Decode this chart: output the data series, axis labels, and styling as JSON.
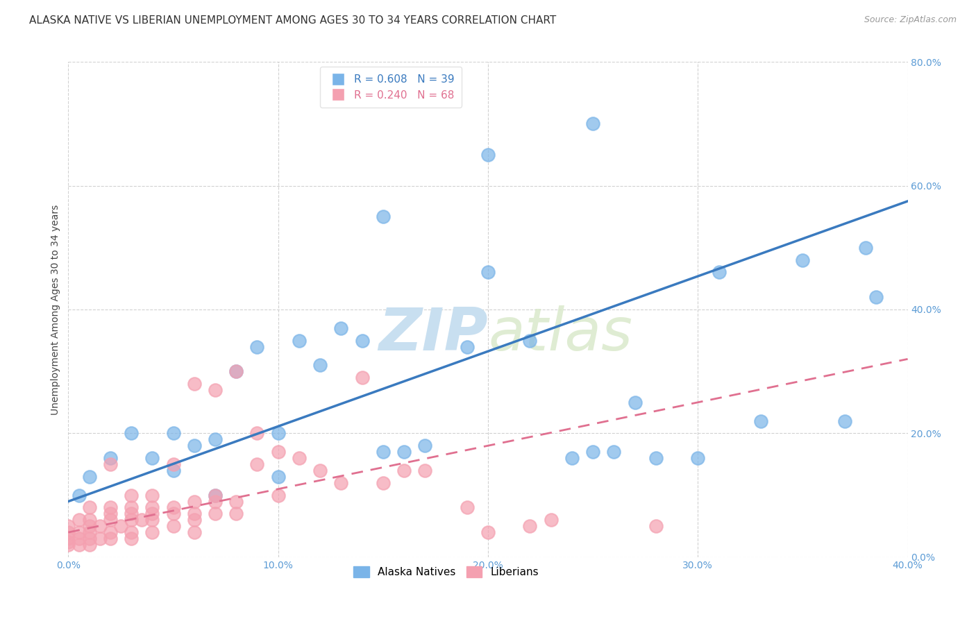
{
  "title": "ALASKA NATIVE VS LIBERIAN UNEMPLOYMENT AMONG AGES 30 TO 34 YEARS CORRELATION CHART",
  "source": "Source: ZipAtlas.com",
  "ylabel": "Unemployment Among Ages 30 to 34 years",
  "xlim": [
    0.0,
    0.4
  ],
  "ylim": [
    0.0,
    0.8
  ],
  "xticks": [
    0.0,
    0.1,
    0.2,
    0.3,
    0.4
  ],
  "yticks": [
    0.0,
    0.2,
    0.4,
    0.6,
    0.8
  ],
  "xtick_labels": [
    "0.0%",
    "10.0%",
    "20.0%",
    "30.0%",
    "40.0%"
  ],
  "ytick_labels": [
    "0.0%",
    "20.0%",
    "40.0%",
    "60.0%",
    "80.0%"
  ],
  "background_color": "#ffffff",
  "grid_color": "#cccccc",
  "alaska_color": "#7ab4e8",
  "liberian_color": "#f4a0b0",
  "alaska_line_color": "#3a7abf",
  "liberian_line_color": "#e07090",
  "alaska_R": 0.608,
  "alaska_N": 39,
  "liberian_R": 0.24,
  "liberian_N": 68,
  "alaska_scatter_x": [
    0.005,
    0.01,
    0.02,
    0.03,
    0.04,
    0.05,
    0.05,
    0.06,
    0.07,
    0.07,
    0.08,
    0.09,
    0.1,
    0.1,
    0.11,
    0.12,
    0.13,
    0.14,
    0.15,
    0.16,
    0.17,
    0.19,
    0.2,
    0.22,
    0.24,
    0.25,
    0.26,
    0.27,
    0.28,
    0.3,
    0.31,
    0.33,
    0.35,
    0.37,
    0.38,
    0.385,
    0.15,
    0.2,
    0.25
  ],
  "alaska_scatter_y": [
    0.1,
    0.13,
    0.16,
    0.2,
    0.16,
    0.2,
    0.14,
    0.18,
    0.19,
    0.1,
    0.3,
    0.34,
    0.2,
    0.13,
    0.35,
    0.31,
    0.37,
    0.35,
    0.17,
    0.17,
    0.18,
    0.34,
    0.46,
    0.35,
    0.16,
    0.17,
    0.17,
    0.25,
    0.16,
    0.16,
    0.46,
    0.22,
    0.48,
    0.22,
    0.5,
    0.42,
    0.55,
    0.65,
    0.7
  ],
  "liberian_scatter_x": [
    0.0,
    0.0,
    0.0,
    0.0,
    0.0,
    0.005,
    0.005,
    0.005,
    0.005,
    0.01,
    0.01,
    0.01,
    0.01,
    0.01,
    0.01,
    0.015,
    0.015,
    0.02,
    0.02,
    0.02,
    0.02,
    0.02,
    0.02,
    0.025,
    0.03,
    0.03,
    0.03,
    0.03,
    0.03,
    0.03,
    0.035,
    0.04,
    0.04,
    0.04,
    0.04,
    0.04,
    0.05,
    0.05,
    0.05,
    0.05,
    0.06,
    0.06,
    0.06,
    0.06,
    0.06,
    0.07,
    0.07,
    0.07,
    0.07,
    0.08,
    0.08,
    0.08,
    0.09,
    0.09,
    0.1,
    0.1,
    0.11,
    0.12,
    0.13,
    0.14,
    0.15,
    0.16,
    0.17,
    0.19,
    0.2,
    0.22,
    0.23,
    0.28
  ],
  "liberian_scatter_y": [
    0.02,
    0.025,
    0.03,
    0.04,
    0.05,
    0.02,
    0.03,
    0.04,
    0.06,
    0.02,
    0.03,
    0.04,
    0.05,
    0.06,
    0.08,
    0.03,
    0.05,
    0.03,
    0.04,
    0.06,
    0.07,
    0.08,
    0.15,
    0.05,
    0.03,
    0.04,
    0.06,
    0.07,
    0.08,
    0.1,
    0.06,
    0.04,
    0.06,
    0.07,
    0.08,
    0.1,
    0.05,
    0.07,
    0.08,
    0.15,
    0.04,
    0.06,
    0.07,
    0.09,
    0.28,
    0.07,
    0.09,
    0.1,
    0.27,
    0.07,
    0.09,
    0.3,
    0.15,
    0.2,
    0.1,
    0.17,
    0.16,
    0.14,
    0.12,
    0.29,
    0.12,
    0.14,
    0.14,
    0.08,
    0.04,
    0.05,
    0.06,
    0.05
  ],
  "alaska_line_x": [
    0.0,
    0.4
  ],
  "alaska_line_y": [
    0.09,
    0.575
  ],
  "liberian_line_x": [
    0.0,
    0.4
  ],
  "liberian_line_y": [
    0.04,
    0.32
  ],
  "watermark_zip": "ZIP",
  "watermark_atlas": "atlas",
  "watermark_color": "#c8dff0",
  "title_fontsize": 11,
  "axis_label_fontsize": 10,
  "tick_fontsize": 10,
  "legend_fontsize": 11,
  "source_fontsize": 9
}
